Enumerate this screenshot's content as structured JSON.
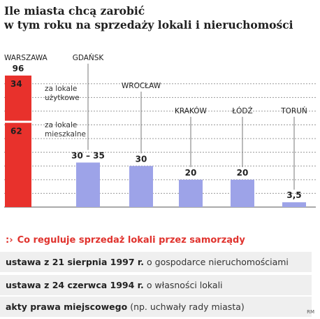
{
  "title_lines": [
    "Ile miasta chcą zarobić",
    "w tym roku na sprzedaży lokali i nieruchomości"
  ],
  "chart_data": {
    "type": "bar",
    "categories": [
      "WARSZAWA",
      "GDAŃSK",
      "WROCŁAW",
      "KRAKÓW",
      "ŁÓDŹ",
      "TORUŃ"
    ],
    "values": [
      96,
      32.5,
      30,
      20,
      20,
      3.5
    ],
    "value_labels": [
      "96",
      "30 – 35",
      "30",
      "20",
      "20",
      "3,5"
    ],
    "stack": {
      "category": "WARSZAWA",
      "segments": [
        {
          "name": "za lokale użytkowe",
          "label_lines": [
            "za lokale",
            "użytkowe"
          ],
          "value": 34,
          "value_label": "34"
        },
        {
          "name": "za lokale mieszkalne",
          "label_lines": [
            "za lokale",
            "mieszkalne"
          ],
          "value": 62,
          "value_label": "62"
        }
      ]
    },
    "ylim": [
      0,
      100
    ],
    "grid": "dashed horizontal",
    "colors": {
      "highlight": "#e8312c",
      "bars": "#9da3e8",
      "grid": "#9a9a9a",
      "leader": "#777777"
    }
  },
  "regulation": {
    "heading": "Co reguluje sprzedaż lokali przez samorządy",
    "arrow_glyph": ":›",
    "rows": [
      {
        "bold": "ustawa z 21 sierpnia 1997 r.",
        "normal": "o gospodarce nieruchomościami"
      },
      {
        "bold": "ustawa z 24 czerwca 1994 r.",
        "normal": "o własności lokali"
      },
      {
        "bold": "akty prawa miejscowego",
        "normal": "(np. uchwały rady miasta)"
      }
    ]
  },
  "credit": "RM"
}
